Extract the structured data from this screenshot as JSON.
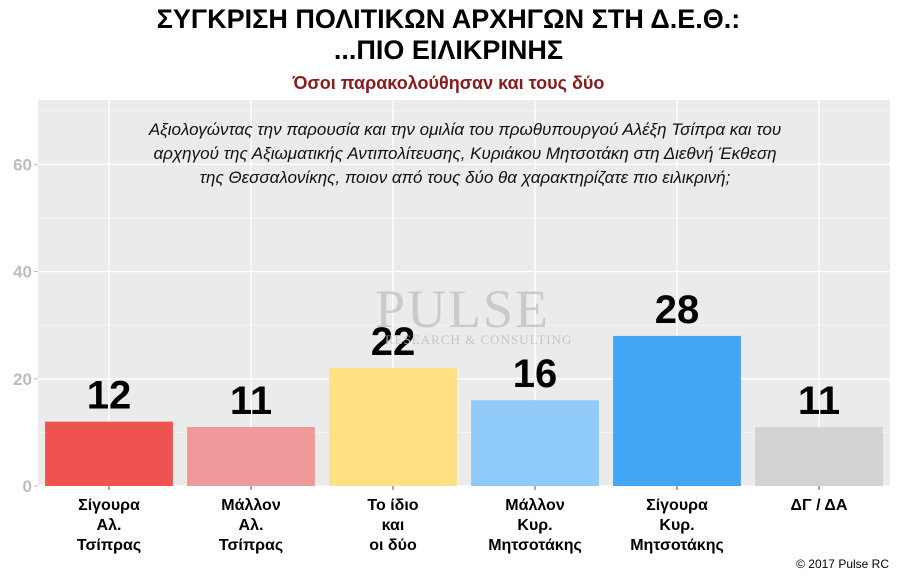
{
  "title_line1": "ΣΥΓΚΡΙΣΗ ΠΟΛΙΤΙΚΩΝ ΑΡΧΗΓΩΝ ΣΤΗ Δ.Ε.Θ.:",
  "title_line2": "...ΠΙΟ ΕΙΛΙΚΡΙΝΗΣ",
  "subtitle": "Όσοι παρακολούθησαν και τους δύο",
  "question_lines": [
    "Αξιολογώντας την παρουσία και την ομιλία του πρωθυπουργού Αλέξη Τσίπρα και του",
    "αρχηγού της Αξιωματικής Αντιπολίτευσης, Κυριάκου Μητσοτάκη στη Διεθνή Έκθεση",
    "της Θεσσαλονίκης, ποιον από τους δύο θα χαρακτηρίζατε πιο ειλικρινή;"
  ],
  "watermark": {
    "main": "PULSE",
    "sub": "RESEARCH & CONSULTING"
  },
  "copyright": "© 2017 Pulse RC",
  "chart_data": {
    "type": "bar",
    "categories": [
      [
        "Σίγουρα",
        "Αλ.",
        "Τσίπρας"
      ],
      [
        "Μάλλον",
        "Αλ.",
        "Τσίπρας"
      ],
      [
        "Το ίδιο",
        "και",
        "οι δύο"
      ],
      [
        "Μάλλον",
        "Κυρ.",
        "Μητσοτάκης"
      ],
      [
        "Σίγουρα",
        "Κυρ.",
        "Μητσοτάκης"
      ],
      [
        "ΔΓ / ΔΑ"
      ]
    ],
    "values": [
      12,
      11,
      22,
      16,
      28,
      11
    ],
    "colors": [
      "#ef5350",
      "#ef9a9a",
      "#ffe082",
      "#90caf9",
      "#42a5f5",
      "#d3d3d3"
    ],
    "ylim": [
      0,
      72
    ],
    "yticks": [
      0,
      20,
      40,
      60
    ],
    "grid": true,
    "background": "#ebebeb"
  }
}
